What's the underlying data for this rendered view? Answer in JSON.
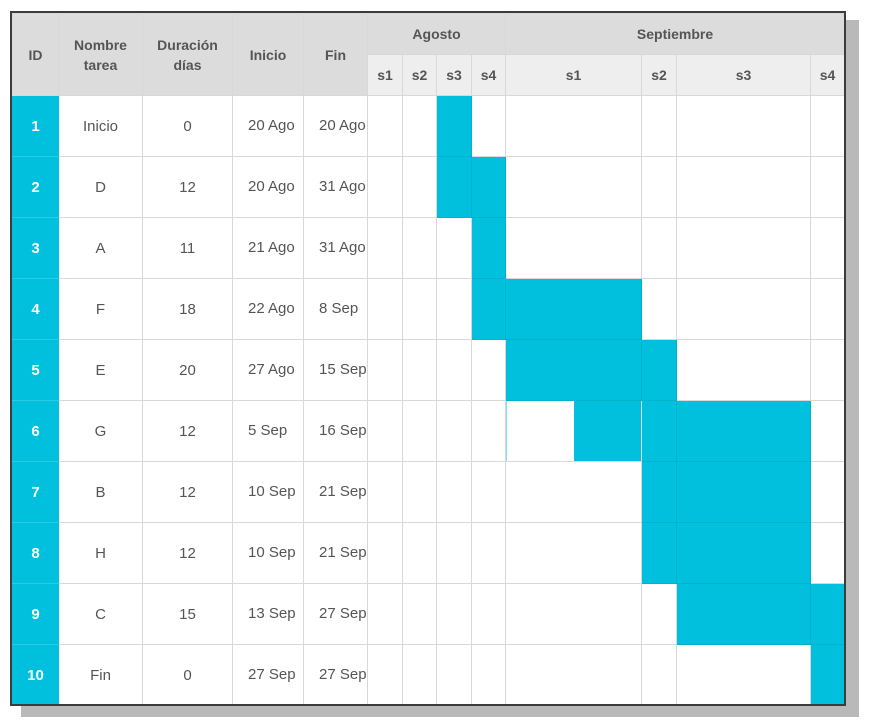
{
  "colors": {
    "bar": "#00c0dd",
    "header_bg": "#dcdcdc",
    "week_bg": "#eeeeee"
  },
  "headers": {
    "id": "ID",
    "name": "Nombre tarea",
    "duration": "Duración días",
    "start": "Inicio",
    "end": "Fin"
  },
  "months": [
    {
      "label": "Agosto",
      "weeks": [
        "s1",
        "s2",
        "s3",
        "s4"
      ]
    },
    {
      "label": "Septiembre",
      "weeks": [
        "s1",
        "s2",
        "s3",
        "s4"
      ]
    }
  ],
  "chart_data": {
    "type": "table",
    "columns": [
      "ID",
      "Nombre tarea",
      "Duración días",
      "Inicio",
      "Fin"
    ],
    "tasks": [
      {
        "id": "1",
        "name": "Inicio",
        "duration": "0",
        "start": "20 Ago",
        "end": "20 Ago",
        "start_date": "2024-08-20",
        "end_date": "2024-08-20"
      },
      {
        "id": "2",
        "name": "D",
        "duration": "12",
        "start": "20 Ago",
        "end": "31 Ago",
        "start_date": "2024-08-20",
        "end_date": "2024-08-31"
      },
      {
        "id": "3",
        "name": "A",
        "duration": "11",
        "start": "21 Ago",
        "end": "31 Ago",
        "start_date": "2024-08-21",
        "end_date": "2024-08-31"
      },
      {
        "id": "4",
        "name": "F",
        "duration": "18",
        "start": "22 Ago",
        "end": "8 Sep",
        "start_date": "2024-08-22",
        "end_date": "2024-09-08"
      },
      {
        "id": "5",
        "name": "E",
        "duration": "20",
        "start": "27 Ago",
        "end": "15 Sep",
        "start_date": "2024-08-27",
        "end_date": "2024-09-15"
      },
      {
        "id": "6",
        "name": "G",
        "duration": "12",
        "start": "5 Sep",
        "end": "16 Sep",
        "start_date": "2024-09-05",
        "end_date": "2024-09-16"
      },
      {
        "id": "7",
        "name": "B",
        "duration": "12",
        "start": "10 Sep",
        "end": "21 Sep",
        "start_date": "2024-09-10",
        "end_date": "2024-09-21"
      },
      {
        "id": "8",
        "name": "H",
        "duration": "12",
        "start": "10 Sep",
        "end": "21 Sep",
        "start_date": "2024-09-10",
        "end_date": "2024-09-21"
      },
      {
        "id": "9",
        "name": "C",
        "duration": "15",
        "start": "13 Sep",
        "end": "27 Sep",
        "start_date": "2024-09-13",
        "end_date": "2024-09-27"
      },
      {
        "id": "10",
        "name": "Fin",
        "duration": "0",
        "start": "27 Sep",
        "end": "27 Sep",
        "start_date": "2024-09-27",
        "end_date": "2024-09-27"
      }
    ],
    "week_bars": [
      {
        "id": "1",
        "from_week": 3,
        "to_week": 3
      },
      {
        "id": "2",
        "from_week": 3,
        "to_week": 4
      },
      {
        "id": "3",
        "from_week": 4,
        "to_week": 4
      },
      {
        "id": "4",
        "from_week": 4,
        "to_week": 5
      },
      {
        "id": "5",
        "from_week": 5,
        "to_week": 6
      },
      {
        "id": "6",
        "from_week": 5.5,
        "to_week": 7
      },
      {
        "id": "7",
        "from_week": 6,
        "to_week": 7
      },
      {
        "id": "8",
        "from_week": 6,
        "to_week": 7
      },
      {
        "id": "9",
        "from_week": 7,
        "to_week": 8
      },
      {
        "id": "10",
        "from_week": 8,
        "to_week": 8
      }
    ]
  }
}
